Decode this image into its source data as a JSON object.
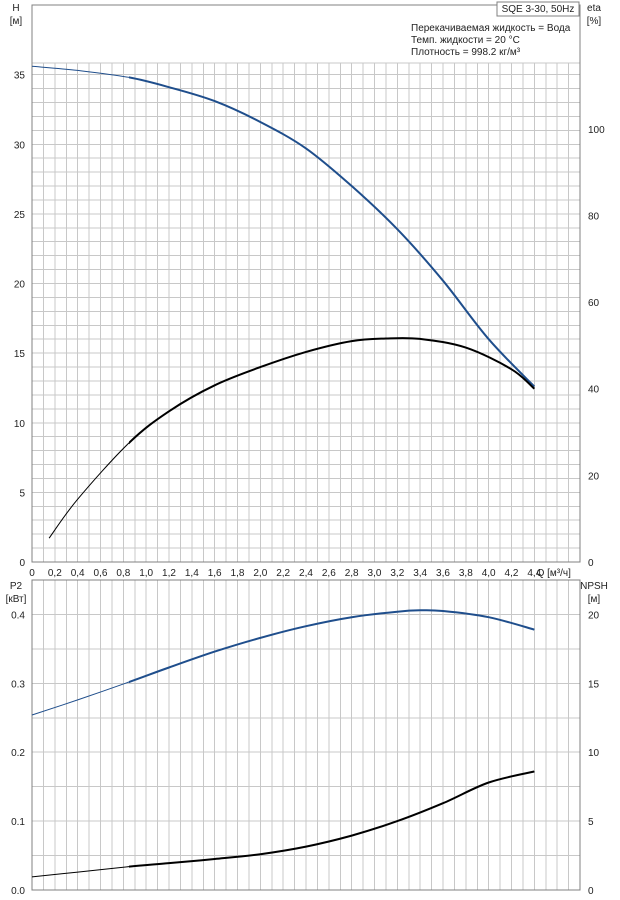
{
  "chart_data": [
    {
      "type": "line",
      "title": "SQE 3-30, 50Hz",
      "notes": [
        "Перекачиваемая жидкость = Вода",
        "Темп. жидкости = 20 °C",
        "Плотность = 998.2 кг/м³"
      ],
      "xlabel": "Q [м³/ч]",
      "x_ticks": [
        "0",
        "0,2",
        "0,4",
        "0,6",
        "0,8",
        "1,0",
        "1,2",
        "1,4",
        "1,6",
        "1,8",
        "2,0",
        "2,2",
        "2,4",
        "2,6",
        "2,8",
        "3,0",
        "3,2",
        "3,4",
        "3,6",
        "3,8",
        "4,0",
        "4,2",
        "4,4"
      ],
      "xlim": [
        0,
        4.8
      ],
      "left_axis": {
        "label": "H",
        "unit": "[м]",
        "ylim": [
          0,
          40
        ],
        "ticks": [
          "0",
          "5",
          "10",
          "15",
          "20",
          "25",
          "30",
          "35"
        ],
        "tick_values": [
          0,
          5,
          10,
          15,
          20,
          25,
          30,
          35
        ]
      },
      "right_axis": {
        "label": "eta",
        "unit": "[%]",
        "ylim": [
          0,
          128.6
        ],
        "ticks": [
          "0",
          "20",
          "40",
          "60",
          "80",
          "100"
        ],
        "tick_values": [
          0,
          20,
          40,
          60,
          80,
          100
        ]
      },
      "grid": true,
      "series": [
        {
          "axis": "left",
          "color": "#1f4e8c",
          "x": [
            0,
            0.4,
            0.85,
            1.2,
            1.6,
            2.0,
            2.4,
            2.8,
            3.2,
            3.6,
            4.0,
            4.4
          ],
          "y": [
            35.6,
            35.3,
            34.8,
            34.1,
            33.1,
            31.6,
            29.7,
            27.0,
            23.9,
            20.2,
            16.0,
            12.6
          ]
        },
        {
          "axis": "right",
          "color": "#000000",
          "x": [
            0.15,
            0.4,
            0.85,
            1.2,
            1.6,
            2.0,
            2.4,
            2.8,
            3.1,
            3.4,
            3.8,
            4.2,
            4.4
          ],
          "y": [
            5.5,
            14.5,
            27.5,
            34.8,
            40.8,
            45.0,
            48.5,
            51.0,
            51.6,
            51.5,
            49.5,
            44.5,
            40.0
          ]
        }
      ]
    },
    {
      "type": "line",
      "left_axis": {
        "label": "P2",
        "unit": "[кВт]",
        "ylim": [
          0,
          0.45
        ],
        "ticks": [
          "0.0",
          "0.1",
          "0.2",
          "0.3",
          "0.4"
        ],
        "tick_values": [
          0,
          0.1,
          0.2,
          0.3,
          0.4
        ]
      },
      "right_axis": {
        "label": "NPSH",
        "unit": "[м]",
        "ylim": [
          0,
          22.5
        ],
        "ticks": [
          "0",
          "5",
          "10",
          "15",
          "20"
        ],
        "tick_values": [
          0,
          5,
          10,
          15,
          20
        ]
      },
      "xlim": [
        0,
        4.8
      ],
      "grid": true,
      "series": [
        {
          "axis": "left",
          "color": "#1f4e8c",
          "x": [
            0,
            0.4,
            0.85,
            1.2,
            1.6,
            2.0,
            2.4,
            2.8,
            3.2,
            3.4,
            3.6,
            4.0,
            4.4
          ],
          "y": [
            0.254,
            0.276,
            0.302,
            0.323,
            0.346,
            0.366,
            0.383,
            0.396,
            0.404,
            0.406,
            0.405,
            0.396,
            0.378
          ]
        },
        {
          "axis": "right",
          "color": "#000000",
          "x": [
            0,
            0.4,
            0.85,
            1.2,
            1.6,
            2.0,
            2.4,
            2.8,
            3.2,
            3.6,
            4.0,
            4.4
          ],
          "y": [
            0.95,
            1.3,
            1.7,
            1.95,
            2.25,
            2.6,
            3.15,
            3.95,
            5.0,
            6.3,
            7.8,
            8.6
          ]
        }
      ]
    }
  ]
}
